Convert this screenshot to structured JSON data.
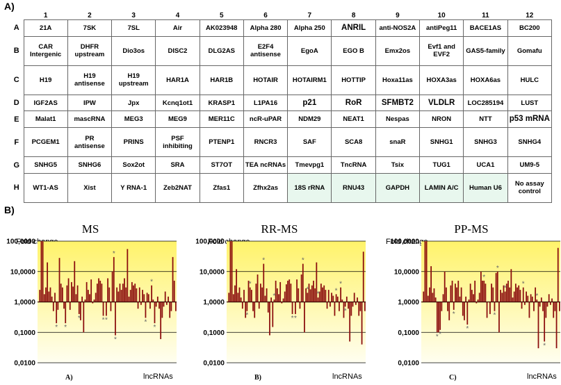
{
  "panel_a_label": "A)",
  "panel_b_label": "B)",
  "grid": {
    "columns": [
      "1",
      "2",
      "3",
      "4",
      "5",
      "6",
      "7",
      "8",
      "9",
      "10",
      "11",
      "12"
    ],
    "rows": [
      {
        "label": "A",
        "cells": [
          "21A",
          "7SK",
          "7SL",
          "Air",
          "AK023948",
          "Alpha 280",
          "Alpha 250",
          "ANRIL",
          "anti-NOS2A",
          "antiPeg11",
          "BACE1AS",
          "BC200"
        ]
      },
      {
        "label": "B",
        "cells": [
          "CAR Intergenic",
          "DHFR upstream",
          "Dio3os",
          "DISC2",
          "DLG2AS",
          "E2F4 antisense",
          "EgoA",
          "EGO B",
          "Emx2os",
          "Evf1 and EVF2",
          "GAS5-family",
          "Gomafu"
        ]
      },
      {
        "label": "C",
        "cells": [
          "H19",
          "H19 antisense",
          "H19 upstream",
          "HAR1A",
          "HAR1B",
          "HOTAIR",
          "HOTAIRM1",
          "HOTTIP",
          "Hoxa11as",
          "HOXA3as",
          "HOXA6as",
          "HULC"
        ]
      },
      {
        "label": "D",
        "cells": [
          "IGF2AS",
          "IPW",
          "Jpx",
          "Kcnq1ot1",
          "KRASP1",
          "L1PA16",
          "p21",
          "RoR",
          "SFMBT2",
          "VLDLR",
          "LOC285194",
          "LUST"
        ]
      },
      {
        "label": "E",
        "cells": [
          "Malat1",
          "mascRNA",
          "MEG3",
          "MEG9",
          "MER11C",
          "ncR-uPAR",
          "NDM29",
          "NEAT1",
          "Nespas",
          "NRON",
          "NTT",
          "p53 mRNA"
        ]
      },
      {
        "label": "F",
        "cells": [
          "PCGEM1",
          "PR antisense",
          "PRINS",
          "PSF inhibiting",
          "PTENP1",
          "RNCR3",
          "SAF",
          "SCA8",
          "snaR",
          "SNHG1",
          "SNHG3",
          "SNHG4"
        ]
      },
      {
        "label": "G",
        "cells": [
          "SNHG5",
          "SNHG6",
          "Sox2ot",
          "SRA",
          "ST7OT",
          "TEA ncRNAs",
          "Tmevpg1",
          "TncRNA",
          "Tsix",
          "TUG1",
          "UCA1",
          "UM9-5"
        ]
      },
      {
        "label": "H",
        "cells": [
          "WT1-AS",
          "Xist",
          "Y RNA-1",
          "Zeb2NAT",
          "Zfas1",
          "Zfhx2as",
          "18S rRNA",
          "RNU43",
          "GAPDH",
          "LAMIN A/C",
          "Human U6",
          "No assay control"
        ]
      }
    ]
  },
  "colors": {
    "bar": "#8b0d0d",
    "bg_top": "#fff36a",
    "bg_bottom": "#fffef0",
    "grid": "#000000",
    "control_cell": "#e8f7ee"
  },
  "chart_data": [
    {
      "type": "bar",
      "title": "MS",
      "ylabel": "Fold change",
      "xlabel": "lncRNAs",
      "sublabel": "A)",
      "yscale": "log",
      "ylim": [
        0.01,
        100
      ],
      "yticks": [
        "100,0000",
        "10,0000",
        "1,0000",
        "0,1000",
        "0,0100"
      ],
      "values": [
        1,
        2.5,
        100,
        100,
        1.8,
        3,
        20,
        2.2,
        3,
        1.5,
        0.5,
        2,
        0.2,
        0.55,
        28,
        4,
        3,
        0.6,
        0.2,
        3.5,
        6,
        0.55,
        4.5,
        3.2,
        22,
        1.8,
        3.5,
        0.4,
        0.25,
        1.5,
        0.1,
        1.2,
        4.5,
        2.5,
        1.8,
        5.5,
        0.9,
        1.2,
        2,
        4,
        6,
        5,
        4,
        0.35,
        1,
        0.35,
        6,
        3,
        0.5,
        10,
        30,
        0.08,
        3,
        2.2,
        4,
        2.5,
        4,
        6,
        3,
        55,
        1.5,
        2.5,
        4.5,
        3.5,
        4,
        2.8,
        0.6,
        3,
        0.8,
        2.5,
        1.8,
        0.3,
        2,
        1.8,
        0.6,
        3.5,
        1.2,
        0.2,
        0.7,
        1.5,
        0.6,
        0.06,
        0.3,
        0.7,
        2.2,
        0.8,
        1.5,
        0.3,
        0.5,
        30,
        5,
        0.5
      ],
      "stars": [
        12,
        18,
        27,
        43,
        45,
        50,
        51,
        71,
        75,
        77
      ]
    },
    {
      "type": "bar",
      "title": "RR-MS",
      "ylabel": "Fold change",
      "xlabel": "lncRNAs",
      "sublabel": "B)",
      "yscale": "log",
      "ylim": [
        0.01,
        100
      ],
      "yticks": [
        "100,0000",
        "10,0000",
        "1,0000",
        "0,1000",
        "0,0100"
      ],
      "values": [
        1,
        2,
        100,
        100,
        1.8,
        3.5,
        12,
        2,
        3,
        1.4,
        0.6,
        2.5,
        0.3,
        0.5,
        5,
        3,
        2.5,
        0.5,
        0.3,
        4,
        8,
        0.6,
        4,
        3,
        18,
        1.6,
        2.8,
        0.45,
        0.08,
        1.4,
        0.15,
        1.2,
        5,
        2.8,
        1.8,
        4.5,
        0.9,
        1.3,
        2.2,
        3.8,
        5,
        5.5,
        4,
        0.4,
        1,
        0.4,
        5.5,
        2.8,
        0.6,
        8,
        18,
        0.1,
        2.8,
        2,
        4,
        2.6,
        3.5,
        5,
        2.8,
        20,
        1.4,
        2.2,
        4,
        3,
        3.5,
        2.5,
        0.6,
        2.5,
        0.7,
        2,
        1.6,
        0.35,
        1.8,
        1.5,
        0.5,
        3,
        1.2,
        0.3,
        0.7,
        1.5,
        0.6,
        0.05,
        0.35,
        0.7,
        2,
        0.8,
        1.4,
        0.35,
        0.5,
        0.04,
        45,
        0.5
      ],
      "stars": [
        13,
        15,
        24,
        31,
        43,
        45,
        50,
        53,
        60,
        72,
        75,
        78
      ]
    },
    {
      "type": "bar",
      "title": "PP-MS",
      "ylabel": "Fold change",
      "xlabel": "lncRNAs",
      "sublabel": "C)",
      "yscale": "log",
      "ylim": [
        0.01,
        100
      ],
      "yticks": [
        "100,0000",
        "10,0000",
        "1,0000",
        "0,1000",
        "0,0100"
      ],
      "values": [
        1,
        2.2,
        100,
        100,
        1.6,
        3,
        15,
        2,
        2.8,
        1.4,
        0.1,
        0.1,
        0.12,
        0.5,
        1.8,
        10,
        3,
        0.5,
        0.25,
        3.5,
        5,
        0.55,
        4,
        3,
        5,
        1.5,
        3,
        0.35,
        0.25,
        1.5,
        0.18,
        1.2,
        4,
        2.5,
        1.8,
        5,
        0.9,
        1.2,
        2,
        10,
        5,
        5,
        4,
        0.3,
        1,
        0.4,
        4,
        3,
        0.5,
        9,
        10,
        0.1,
        2.5,
        2,
        3.5,
        2.2,
        4,
        5,
        3,
        12,
        1.4,
        2.2,
        4,
        3,
        3.5,
        2.5,
        0.6,
        3,
        0.8,
        2.2,
        1.6,
        0.3,
        1.8,
        1.5,
        0.5,
        3,
        1.2,
        0.03,
        0.7,
        1.4,
        0.5,
        0.05,
        0.3,
        0.7,
        1.8,
        0.8,
        1.3,
        0.3,
        0.5,
        0.03,
        60,
        0.5
      ],
      "stars": [
        10,
        12,
        21,
        30,
        41,
        48,
        50,
        55,
        67,
        76,
        81
      ]
    }
  ]
}
